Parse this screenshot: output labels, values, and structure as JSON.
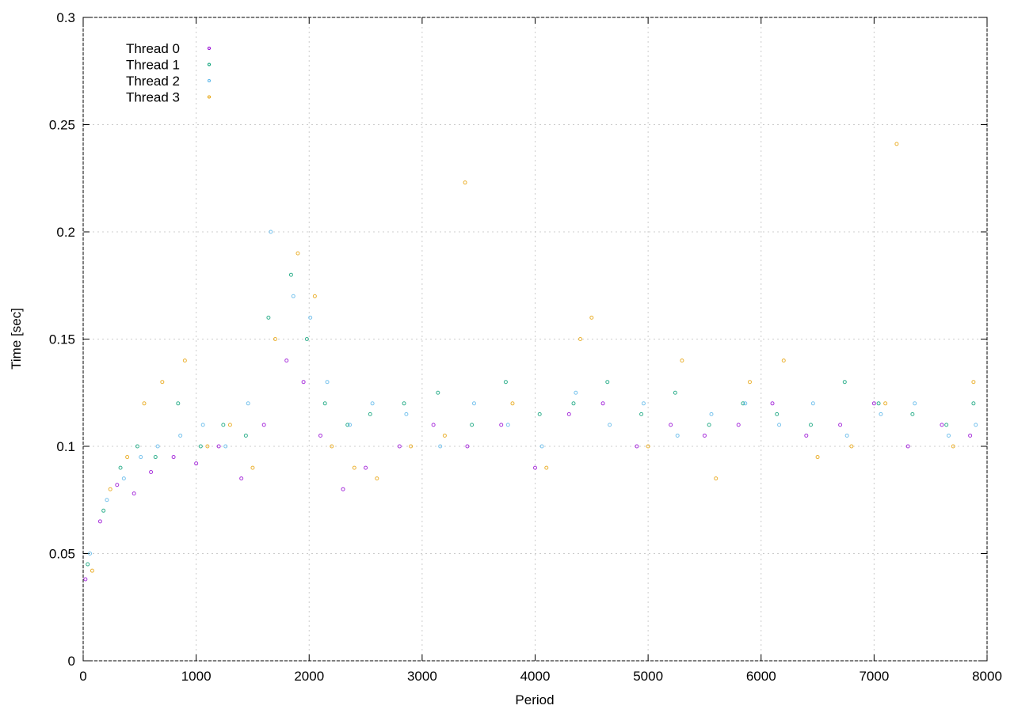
{
  "chart_data": {
    "type": "scatter",
    "x_label": "Period",
    "y_label": "Time [sec]",
    "xlim": [
      0,
      8000
    ],
    "ylim": [
      0,
      0.3
    ],
    "xticks": [
      0,
      1000,
      2000,
      3000,
      4000,
      5000,
      6000,
      7000,
      8000
    ],
    "yticks": [
      0,
      0.05,
      0.1,
      0.15,
      0.2,
      0.25,
      0.3
    ],
    "grid": true,
    "legend": "upper left",
    "series": [
      {
        "name": "Thread 0",
        "color": "#9400d3",
        "x": [
          20,
          150,
          300,
          450,
          600,
          800,
          1000,
          1200,
          1400,
          1600,
          1800,
          1950,
          2100,
          2300,
          2500,
          2800,
          3100,
          3400,
          3700,
          4000,
          4300,
          4600,
          4900,
          5200,
          5500,
          5800,
          6100,
          6400,
          6700,
          7000,
          7300,
          7600,
          7850
        ],
        "values": [
          0.038,
          0.065,
          0.082,
          0.078,
          0.088,
          0.095,
          0.092,
          0.1,
          0.085,
          0.11,
          0.14,
          0.13,
          0.105,
          0.08,
          0.09,
          0.1,
          0.11,
          0.1,
          0.11,
          0.09,
          0.115,
          0.12,
          0.1,
          0.11,
          0.105,
          0.11,
          0.12,
          0.105,
          0.11,
          0.12,
          0.1,
          0.11,
          0.105
        ]
      },
      {
        "name": "Thread 1",
        "color": "#009e73",
        "x": [
          40,
          180,
          330,
          480,
          640,
          840,
          1040,
          1240,
          1440,
          1640,
          1840,
          1980,
          2140,
          2340,
          2540,
          2840,
          3140,
          3440,
          3740,
          4040,
          4340,
          4640,
          4940,
          5240,
          5540,
          5840,
          6140,
          6440,
          6740,
          7040,
          7340,
          7640,
          7880
        ],
        "values": [
          0.045,
          0.07,
          0.09,
          0.1,
          0.095,
          0.12,
          0.1,
          0.11,
          0.105,
          0.16,
          0.18,
          0.15,
          0.12,
          0.11,
          0.115,
          0.12,
          0.125,
          0.11,
          0.13,
          0.115,
          0.12,
          0.13,
          0.115,
          0.125,
          0.11,
          0.12,
          0.115,
          0.11,
          0.13,
          0.12,
          0.115,
          0.11,
          0.12
        ]
      },
      {
        "name": "Thread 2",
        "color": "#56b4e9",
        "x": [
          60,
          210,
          360,
          510,
          660,
          860,
          1060,
          1260,
          1460,
          1660,
          1860,
          2010,
          2160,
          2360,
          2560,
          2860,
          3160,
          3460,
          3760,
          4060,
          4360,
          4660,
          4960,
          5260,
          5560,
          5860,
          6160,
          6460,
          6760,
          7060,
          7360,
          7660,
          7900
        ],
        "values": [
          0.05,
          0.075,
          0.085,
          0.095,
          0.1,
          0.105,
          0.11,
          0.1,
          0.12,
          0.2,
          0.17,
          0.16,
          0.13,
          0.11,
          0.12,
          0.115,
          0.1,
          0.12,
          0.11,
          0.1,
          0.125,
          0.11,
          0.12,
          0.105,
          0.115,
          0.12,
          0.11,
          0.12,
          0.105,
          0.115,
          0.12,
          0.105,
          0.11
        ]
      },
      {
        "name": "Thread 3",
        "color": "#e69f00",
        "x": [
          80,
          240,
          390,
          540,
          700,
          900,
          1100,
          1300,
          1500,
          1700,
          1900,
          2050,
          2200,
          2400,
          2600,
          2900,
          3200,
          3380,
          3800,
          4100,
          4400,
          4500,
          5000,
          5300,
          5600,
          5900,
          6200,
          6500,
          6800,
          7100,
          7200,
          7700,
          7880
        ],
        "values": [
          0.042,
          0.08,
          0.095,
          0.12,
          0.13,
          0.14,
          0.1,
          0.11,
          0.09,
          0.15,
          0.19,
          0.17,
          0.1,
          0.09,
          0.085,
          0.1,
          0.105,
          0.223,
          0.12,
          0.09,
          0.15,
          0.16,
          0.1,
          0.14,
          0.085,
          0.13,
          0.14,
          0.095,
          0.1,
          0.12,
          0.241,
          0.1,
          0.13
        ]
      }
    ]
  }
}
